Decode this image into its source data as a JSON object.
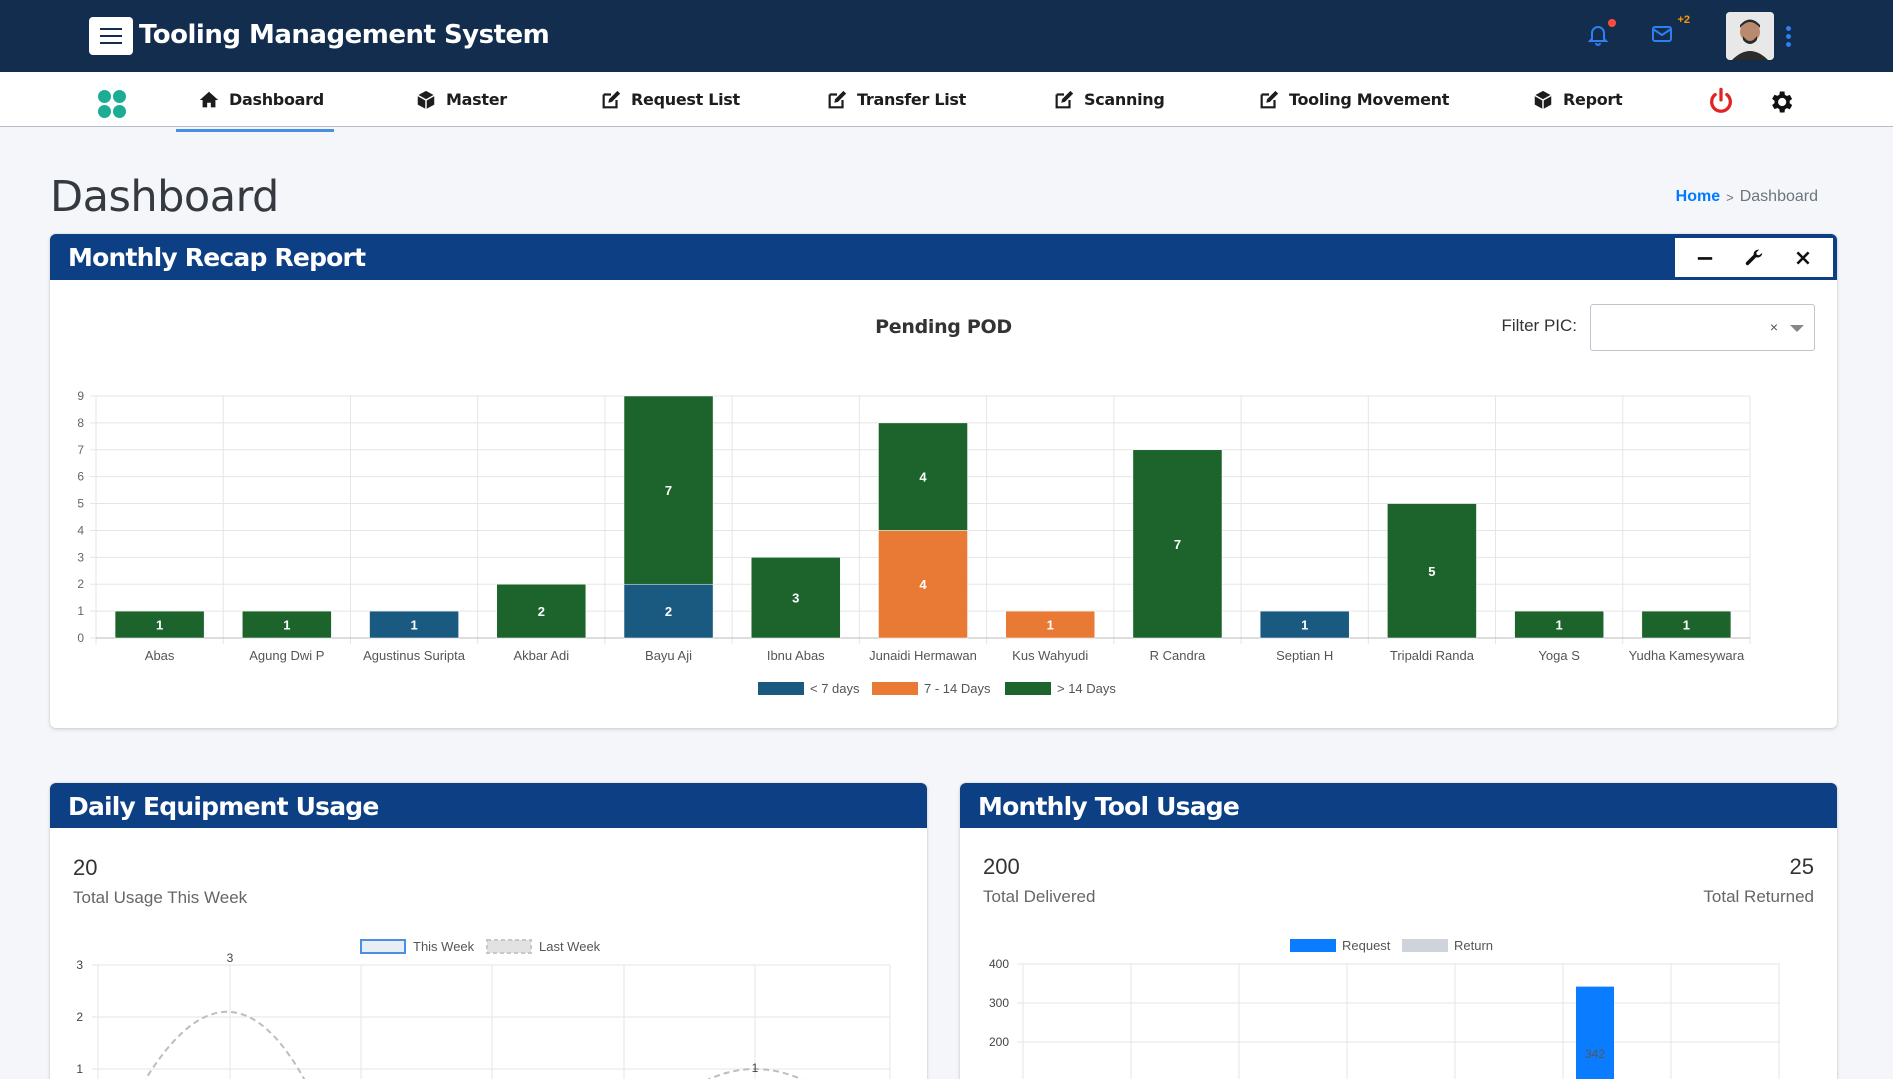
{
  "app": {
    "title": "Tooling Management System",
    "notifications_badge": "+2"
  },
  "nav": {
    "items": [
      {
        "label": "Dashboard",
        "icon": "home-icon"
      },
      {
        "label": "Master",
        "icon": "cube-icon"
      },
      {
        "label": "Request List",
        "icon": "edit-icon"
      },
      {
        "label": "Transfer List",
        "icon": "edit-icon"
      },
      {
        "label": "Scanning",
        "icon": "edit-icon"
      },
      {
        "label": "Tooling Movement",
        "icon": "edit-icon"
      },
      {
        "label": "Report",
        "icon": "cube-icon"
      }
    ],
    "active": "Dashboard"
  },
  "page": {
    "title": "Dashboard",
    "breadcrumb": {
      "home": "Home",
      "separator": ">",
      "current": "Dashboard"
    }
  },
  "monthly_recap": {
    "title": "Monthly Recap Report",
    "filter_label": "Filter PIC:",
    "filter_clear": "×"
  },
  "daily_equipment": {
    "title": "Daily Equipment Usage",
    "total_value": "20",
    "total_label": "Total Usage This Week"
  },
  "monthly_tool": {
    "title": "Monthly Tool Usage",
    "delivered_value": "200",
    "delivered_label": "Total Delivered",
    "returned_value": "25",
    "returned_label": "Total Returned"
  },
  "colors": {
    "header_dark": "#132d4f",
    "card_header": "#0d3f84",
    "lt7": "#1a5a80",
    "d7_14": "#e87a35",
    "gt14": "#1c632c",
    "request": "#0a7cff",
    "return": "#ced4da"
  },
  "chart_data": [
    {
      "type": "bar",
      "stacked": true,
      "title": "Pending POD",
      "categories": [
        "Abas",
        "Agung Dwi P",
        "Agustinus Suripta",
        "Akbar Adi",
        "Bayu Aji",
        "Ibnu Abas",
        "Junaidi Hermawan",
        "Kus Wahyudi",
        "R Candra",
        "Septian H",
        "Tripaldi Randa",
        "Yoga S",
        "Yudha Kamesywara"
      ],
      "series": [
        {
          "name": "< 7 days",
          "color": "#1a5a80",
          "values": [
            0,
            0,
            1,
            0,
            2,
            0,
            0,
            0,
            0,
            1,
            0,
            0,
            0
          ]
        },
        {
          "name": "7 - 14 Days",
          "color": "#e87a35",
          "values": [
            0,
            0,
            0,
            0,
            0,
            0,
            4,
            1,
            0,
            0,
            0,
            0,
            0
          ]
        },
        {
          "name": "> 14 Days",
          "color": "#1c632c",
          "values": [
            1,
            1,
            0,
            2,
            7,
            3,
            4,
            0,
            7,
            0,
            5,
            1,
            1
          ]
        }
      ],
      "ylim": [
        0,
        9
      ],
      "yticks": [
        0,
        1,
        2,
        3,
        4,
        5,
        6,
        7,
        8,
        9
      ],
      "legend": "bottom",
      "grid": true
    },
    {
      "type": "line",
      "series": [
        {
          "name": "This Week",
          "values": []
        },
        {
          "name": "Last Week",
          "points_visible": [
            {
              "label": "3",
              "value": 3
            },
            {
              "label": "1",
              "value": 1
            }
          ]
        }
      ],
      "yticks": [
        1,
        2,
        3
      ],
      "legend": "top",
      "grid": true
    },
    {
      "type": "bar",
      "series": [
        {
          "name": "Request",
          "color": "#0a7cff",
          "visible_value_label": "342"
        },
        {
          "name": "Return",
          "color": "#ced4da"
        }
      ],
      "yticks": [
        200,
        300,
        400
      ],
      "legend": "top",
      "grid": true
    }
  ]
}
